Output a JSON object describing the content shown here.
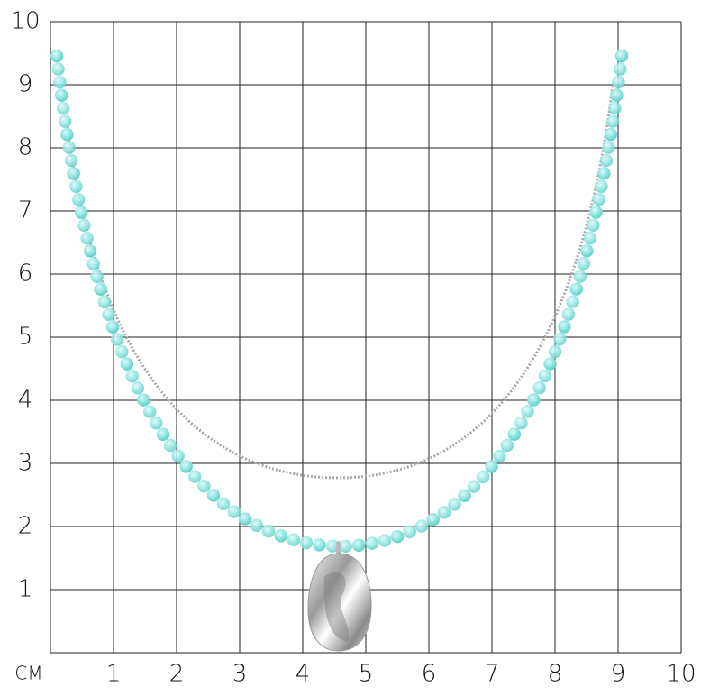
{
  "unit_label": "СМ",
  "x_labels": [
    "1",
    "2",
    "3",
    "4",
    "5",
    "6",
    "7",
    "8",
    "9",
    "10"
  ],
  "y_labels": [
    "1",
    "2",
    "3",
    "4",
    "5",
    "6",
    "7",
    "8",
    "9",
    "10"
  ]
}
